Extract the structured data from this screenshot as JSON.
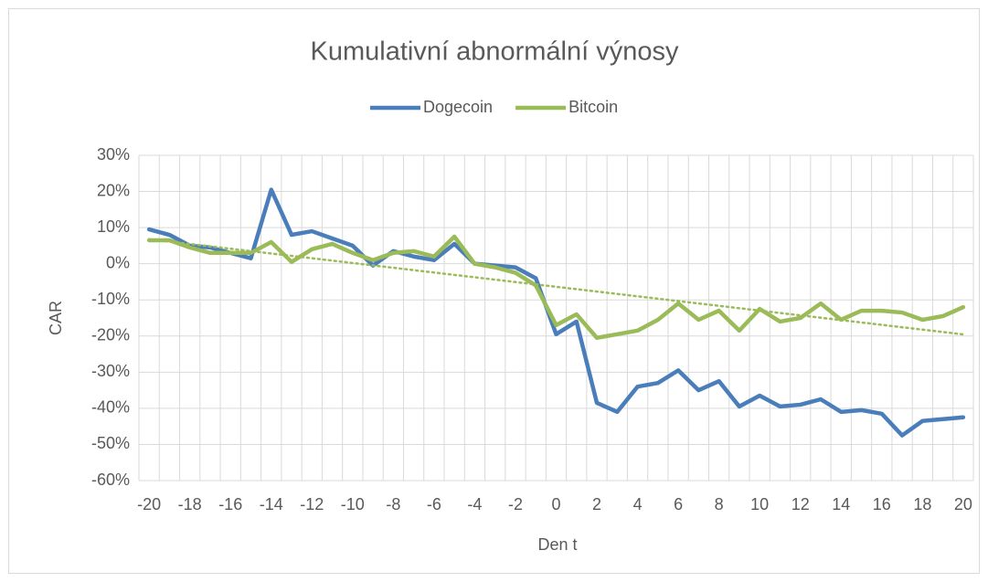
{
  "chart_data": {
    "type": "line",
    "title": "Kumulativní abnormální výnosy",
    "x_label": "Den t",
    "y_label": "CAR",
    "categories": [
      "-20",
      null,
      "-18",
      null,
      "-16",
      null,
      "-14",
      null,
      "-12",
      null,
      "-10",
      null,
      "-8",
      null,
      "-6",
      null,
      "-4",
      null,
      "-2",
      null,
      "0",
      null,
      "2",
      null,
      "4",
      null,
      "6",
      null,
      "8",
      null,
      "10",
      null,
      "12",
      null,
      "14",
      null,
      "16",
      null,
      "18",
      null,
      "20"
    ],
    "series": [
      {
        "name": "Dogecoin",
        "color": "#4a7ebb",
        "values": [
          9.5,
          8,
          5,
          4.5,
          3,
          1.5,
          20.5,
          8,
          9,
          7,
          5,
          -0.5,
          3.5,
          2,
          1,
          5.5,
          0,
          -0.5,
          -1,
          -4,
          -19.5,
          -16,
          -38.5,
          -41,
          -34,
          -33,
          -29.5,
          -35,
          -32.5,
          -39.5,
          -36.5,
          -39.5,
          -39,
          -37.5,
          -41,
          -40.5,
          -41.5,
          -47.5,
          -43.5,
          -43,
          -42.5
        ]
      },
      {
        "name": "Bitcoin",
        "color": "#9bbb59",
        "values": [
          6.5,
          6.5,
          4.5,
          3,
          3,
          3,
          6,
          0.5,
          4,
          5.5,
          3,
          1,
          3,
          3.5,
          2,
          7.5,
          0,
          -1,
          -2.5,
          -6,
          -17,
          -14,
          -20.5,
          -19.5,
          -18.5,
          -15.5,
          -11,
          -15.5,
          -13,
          -18.5,
          -12.5,
          -16,
          -15,
          -11,
          -15.5,
          -13,
          -13,
          -13.5,
          -15.5,
          -14.5,
          -12
        ]
      }
    ],
    "trendline": {
      "series": 1,
      "type": "linear"
    },
    "ylim": [
      -60,
      30
    ],
    "yticks": [
      {
        "value": -60,
        "label": "-60%"
      },
      {
        "value": -50,
        "label": "-50%"
      },
      {
        "value": -40,
        "label": "-40%"
      },
      {
        "value": -30,
        "label": "-30%"
      },
      {
        "value": -20,
        "label": "-20%"
      },
      {
        "value": -10,
        "label": "-10%"
      },
      {
        "value": 0,
        "label": "0%"
      },
      {
        "value": 10,
        "label": "10%"
      },
      {
        "value": 20,
        "label": "20%"
      },
      {
        "value": 30,
        "label": "30%"
      }
    ],
    "grid": true,
    "legend": "top"
  }
}
